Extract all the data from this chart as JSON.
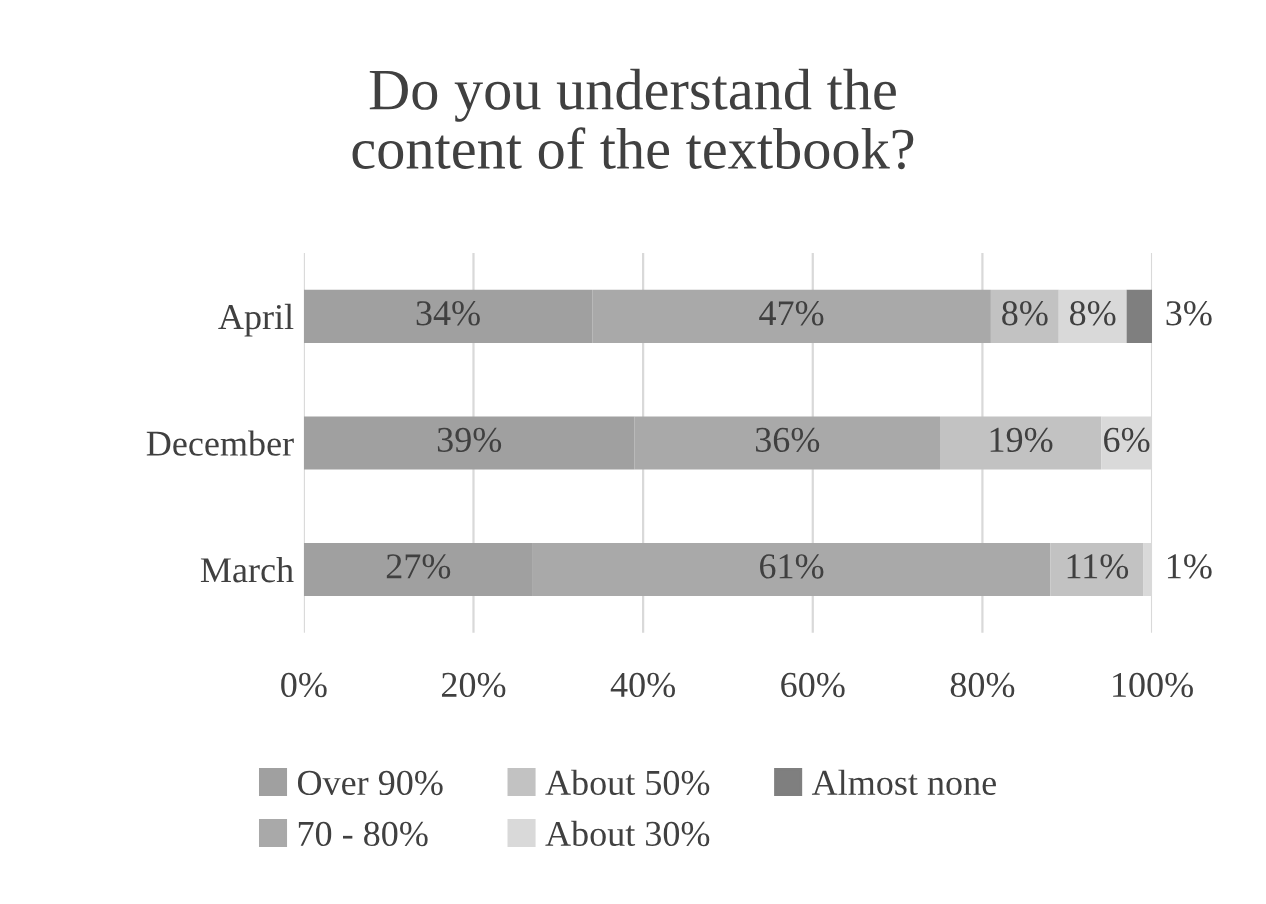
{
  "chart_data": {
    "type": "bar",
    "orientation": "horizontal",
    "stacked": true,
    "title": "Do you understand the\ncontent of the textbook?",
    "categories": [
      "April",
      "December",
      "March"
    ],
    "series": [
      {
        "name": "Over 90%",
        "color": "#a0a0a0",
        "values": [
          34,
          39,
          27
        ],
        "value_labels": [
          "34%",
          "39%",
          "27%"
        ]
      },
      {
        "name": "70 - 80%",
        "color": "#a9a9a9",
        "values": [
          47,
          36,
          61
        ],
        "value_labels": [
          "47%",
          "36%",
          "61%"
        ]
      },
      {
        "name": "About 50%",
        "color": "#c2c2c2",
        "values": [
          8,
          19,
          11
        ],
        "value_labels": [
          "8%",
          "19%",
          "11%"
        ]
      },
      {
        "name": "About 30%",
        "color": "#d9d9d9",
        "values": [
          8,
          6,
          1
        ],
        "value_labels": [
          "8%",
          "6%",
          "1%"
        ]
      },
      {
        "name": "Almost none",
        "color": "#7f7f7f",
        "values": [
          3,
          null,
          null
        ],
        "value_labels": [
          "3%",
          null,
          null
        ]
      }
    ],
    "xlim": [
      0,
      100
    ],
    "xticks": [
      {
        "value": 0,
        "label": "0%"
      },
      {
        "value": 20,
        "label": "20%"
      },
      {
        "value": 40,
        "label": "40%"
      },
      {
        "value": 60,
        "label": "60%"
      },
      {
        "value": 80,
        "label": "80%"
      },
      {
        "value": 100,
        "label": "100%"
      }
    ],
    "grid": "x",
    "legend": "bottom"
  }
}
